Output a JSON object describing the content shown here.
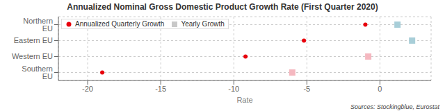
{
  "chart_data": {
    "type": "scatter",
    "title": "Annualized Nominal Gross Domestic Product Growth Rate (First Quarter 2020)",
    "xlabel": "Rate",
    "annotations": [
      "Sources: Stockingblue, Eurostat"
    ],
    "categories": [
      "Northern EU",
      "Eastern EU",
      "Western EU",
      "Southern EU"
    ],
    "series": [
      {
        "name": "Yearly Growth",
        "color": "#c8c8c8",
        "colors": [
          "#a8ced8",
          "#a8ced8",
          "#f5b8c0",
          "#f5b8c0"
        ],
        "marker": "square",
        "values": [
          1.2,
          2.2,
          -0.8,
          -6.0
        ]
      },
      {
        "name": "Annualized Quarterly Growth",
        "color": "#e8000d",
        "marker": "circle",
        "values": [
          -1.0,
          -5.2,
          -9.2,
          -19.0
        ]
      }
    ],
    "xlim": [
      -22,
      3.5
    ],
    "xticks": [
      -20,
      -15,
      -10,
      -5,
      0
    ],
    "grid": true,
    "legend": "upper left"
  }
}
